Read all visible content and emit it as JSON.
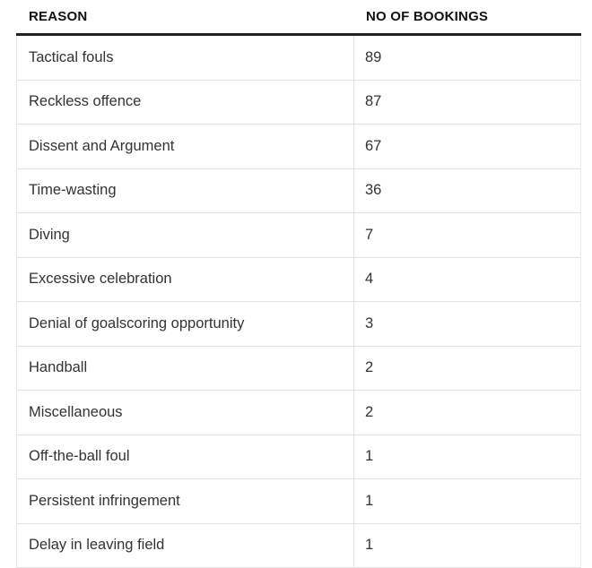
{
  "chart_data": {
    "type": "table",
    "columns": [
      "REASON",
      "NO OF BOOKINGS"
    ],
    "rows": [
      [
        "Tactical fouls",
        89
      ],
      [
        "Reckless offence",
        87
      ],
      [
        "Dissent and Argument",
        67
      ],
      [
        "Time-wasting",
        36
      ],
      [
        "Diving",
        7
      ],
      [
        "Excessive celebration",
        4
      ],
      [
        "Denial of goalscoring opportunity",
        3
      ],
      [
        "Handball",
        2
      ],
      [
        "Miscellaneous",
        2
      ],
      [
        "Off-the-ball foul",
        1
      ],
      [
        "Persistent infringement",
        1
      ],
      [
        "Delay in leaving field",
        1
      ]
    ]
  },
  "colors": {
    "header_text": "#121212",
    "body_text": "#333333",
    "heavy_rule": "#222222",
    "light_rule": "#e2e2e2",
    "background": "#ffffff"
  }
}
